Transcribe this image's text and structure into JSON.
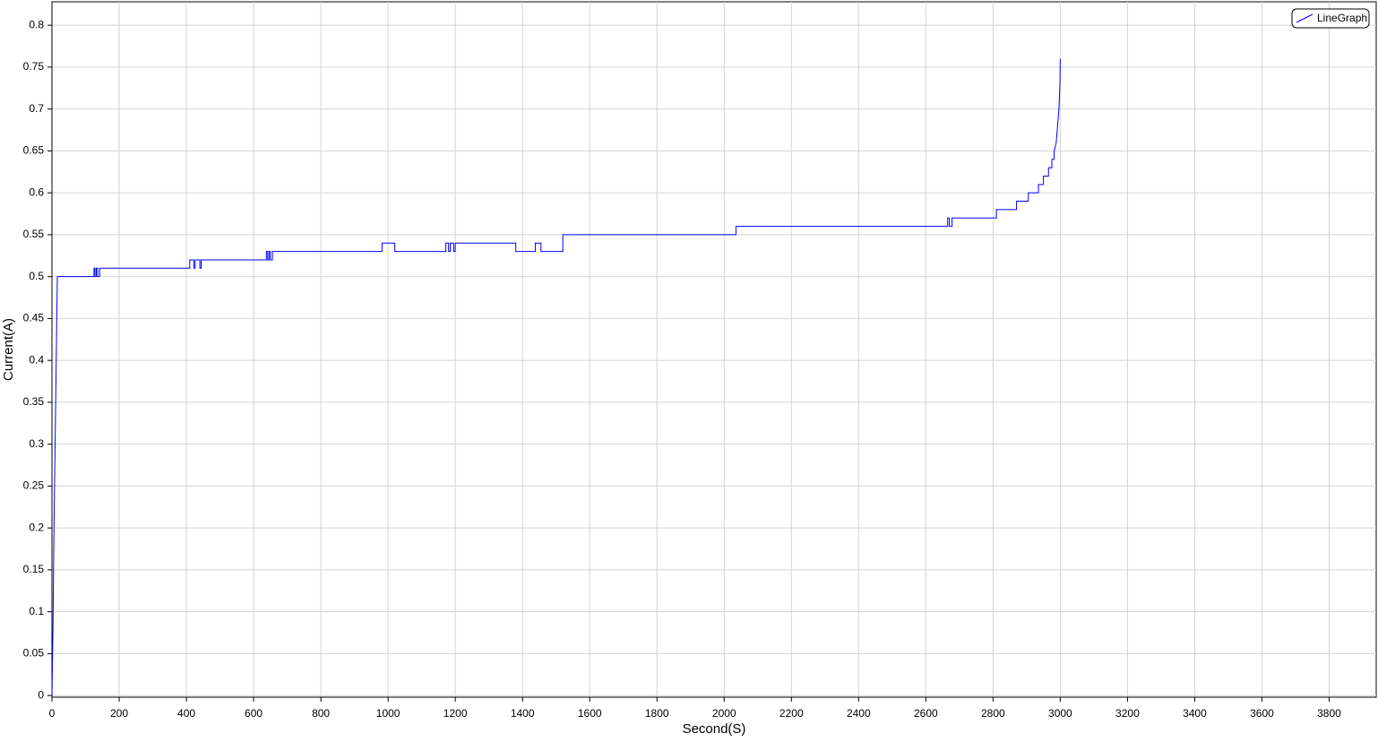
{
  "chart_data": {
    "type": "line",
    "x_label": "Second(S)",
    "y_label": "Current(A)",
    "xlim": [
      0,
      3940
    ],
    "ylim": [
      -0.002,
      0.828
    ],
    "xticks": [
      0,
      200,
      400,
      600,
      800,
      1000,
      1200,
      1400,
      1600,
      1800,
      2000,
      2200,
      2400,
      2600,
      2800,
      3000,
      3200,
      3400,
      3600,
      3800
    ],
    "yticks": [
      0,
      0.05,
      0.1,
      0.15,
      0.2,
      0.25,
      0.3,
      0.35,
      0.4,
      0.45,
      0.5,
      0.55,
      0.6,
      0.65,
      0.7,
      0.75,
      0.8
    ],
    "grid": true,
    "legend_position": "upper right",
    "x": [
      0,
      3,
      6,
      11,
      16,
      125,
      125,
      128,
      128,
      132,
      132,
      136,
      136,
      142,
      142,
      410,
      410,
      422,
      422,
      426,
      426,
      440,
      440,
      444,
      444,
      638,
      638,
      642,
      642,
      646,
      646,
      650,
      650,
      656,
      656,
      982,
      982,
      1020,
      1020,
      1172,
      1172,
      1180,
      1180,
      1185,
      1185,
      1195,
      1195,
      1200,
      1200,
      1380,
      1380,
      1438,
      1438,
      1455,
      1455,
      1520,
      1520,
      2035,
      2035,
      2665,
      2665,
      2670,
      2670,
      2678,
      2678,
      2810,
      2810,
      2870,
      2870,
      2905,
      2905,
      2935,
      2935,
      2950,
      2950,
      2965,
      2965,
      2975,
      2975,
      2982,
      2982,
      2988,
      2992,
      2996,
      2999,
      3000
    ],
    "series": [
      {
        "name": "LineGraph",
        "color": "#0000ff",
        "values": [
          0,
          0.08,
          0.2,
          0.35,
          0.5,
          0.5,
          0.51,
          0.51,
          0.5,
          0.5,
          0.51,
          0.51,
          0.5,
          0.5,
          0.51,
          0.51,
          0.52,
          0.52,
          0.51,
          0.51,
          0.52,
          0.52,
          0.51,
          0.51,
          0.52,
          0.52,
          0.53,
          0.53,
          0.52,
          0.52,
          0.53,
          0.53,
          0.52,
          0.52,
          0.53,
          0.53,
          0.54,
          0.54,
          0.53,
          0.53,
          0.54,
          0.54,
          0.53,
          0.53,
          0.54,
          0.54,
          0.53,
          0.53,
          0.54,
          0.54,
          0.53,
          0.53,
          0.54,
          0.54,
          0.53,
          0.53,
          0.55,
          0.55,
          0.56,
          0.56,
          0.57,
          0.57,
          0.56,
          0.56,
          0.57,
          0.57,
          0.58,
          0.58,
          0.59,
          0.59,
          0.6,
          0.6,
          0.61,
          0.61,
          0.62,
          0.62,
          0.63,
          0.63,
          0.64,
          0.64,
          0.65,
          0.66,
          0.68,
          0.7,
          0.73,
          0.76
        ]
      }
    ]
  }
}
